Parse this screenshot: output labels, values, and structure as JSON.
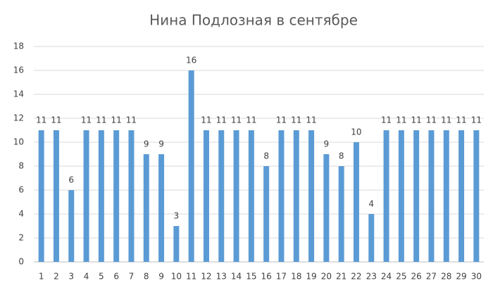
{
  "chart_data": {
    "type": "bar",
    "title": "Нина Подлозная в сентябре",
    "categories": [
      "1",
      "2",
      "3",
      "4",
      "5",
      "6",
      "7",
      "8",
      "9",
      "10",
      "11",
      "12",
      "13",
      "14",
      "15",
      "16",
      "17",
      "18",
      "19",
      "20",
      "21",
      "22",
      "23",
      "24",
      "25",
      "26",
      "27",
      "28",
      "29",
      "30"
    ],
    "values": [
      11,
      11,
      6,
      11,
      11,
      11,
      11,
      9,
      9,
      3,
      16,
      11,
      11,
      11,
      11,
      8,
      11,
      11,
      11,
      9,
      8,
      10,
      4,
      11,
      11,
      11,
      11,
      11,
      11,
      11
    ],
    "color": "#5b9bd5",
    "ylim": [
      0,
      18
    ],
    "yticks": [
      0,
      2,
      4,
      6,
      8,
      10,
      12,
      14,
      16,
      18
    ],
    "grid": true,
    "data_labels": true
  }
}
